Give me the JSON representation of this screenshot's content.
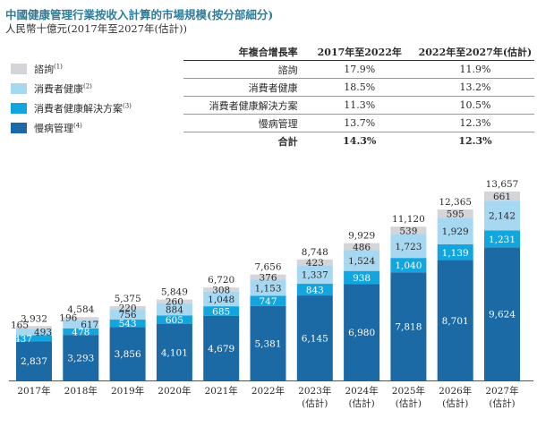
{
  "title": "中國健康管理行業按收入計算的市場規模(按分部細分)",
  "subtitle": "人民幣十億元(2017年至2027年(估計))",
  "colors": {
    "consultation": "#d4d5d9",
    "consumer_health": "#a7d8f2",
    "consumer_solution": "#13a6de",
    "chronic": "#1b6aa5"
  },
  "legend": [
    {
      "label": "諮詢",
      "note": "(1)",
      "color_key": "consultation"
    },
    {
      "label": "消費者健康",
      "note": "(2)",
      "color_key": "consumer_health"
    },
    {
      "label": "消費者健康解決方案",
      "note": "(3)",
      "color_key": "consumer_solution"
    },
    {
      "label": "慢病管理",
      "note": "(4)",
      "color_key": "chronic"
    }
  ],
  "table": {
    "header": [
      "年複合增長率",
      "2017年至2022年",
      "2022年至2027年(估計)"
    ],
    "rows": [
      [
        "諮詢",
        "17.9%",
        "11.9%"
      ],
      [
        "消費者健康",
        "18.5%",
        "13.2%"
      ],
      [
        "消費者健康解決方案",
        "11.3%",
        "10.5%"
      ],
      [
        "慢病管理",
        "13.7%",
        "12.3%"
      ]
    ],
    "total": [
      "合計",
      "14.3%",
      "12.3%"
    ]
  },
  "chart_data": {
    "type": "bar",
    "stacked": true,
    "categories": [
      "2017年",
      "2018年",
      "2019年",
      "2020年",
      "2021年",
      "2022年",
      "2023年(估計)",
      "2024年(估計)",
      "2025年(估計)",
      "2026年(估計)",
      "2027年(估計)"
    ],
    "series": [
      {
        "name": "慢病管理",
        "color_key": "chronic",
        "values": [
          2837,
          3293,
          3856,
          4101,
          4679,
          5381,
          6145,
          6980,
          7818,
          8701,
          9624
        ]
      },
      {
        "name": "消費者健康解決方案",
        "color_key": "consumer_solution",
        "values": [
          437,
          478,
          543,
          605,
          685,
          747,
          843,
          938,
          1040,
          1139,
          1231
        ]
      },
      {
        "name": "消費者健康",
        "color_key": "consumer_health",
        "values": [
          493,
          617,
          756,
          884,
          1048,
          1153,
          1337,
          1524,
          1723,
          1929,
          2142
        ]
      },
      {
        "name": "諮詢",
        "color_key": "consultation",
        "values": [
          165,
          196,
          220,
          260,
          308,
          376,
          423,
          486,
          539,
          595,
          661
        ]
      }
    ],
    "totals": [
      3932,
      4584,
      5375,
      5849,
      6720,
      7656,
      8748,
      9929,
      11120,
      12365,
      13657
    ],
    "ylim": [
      0,
      14000
    ]
  }
}
